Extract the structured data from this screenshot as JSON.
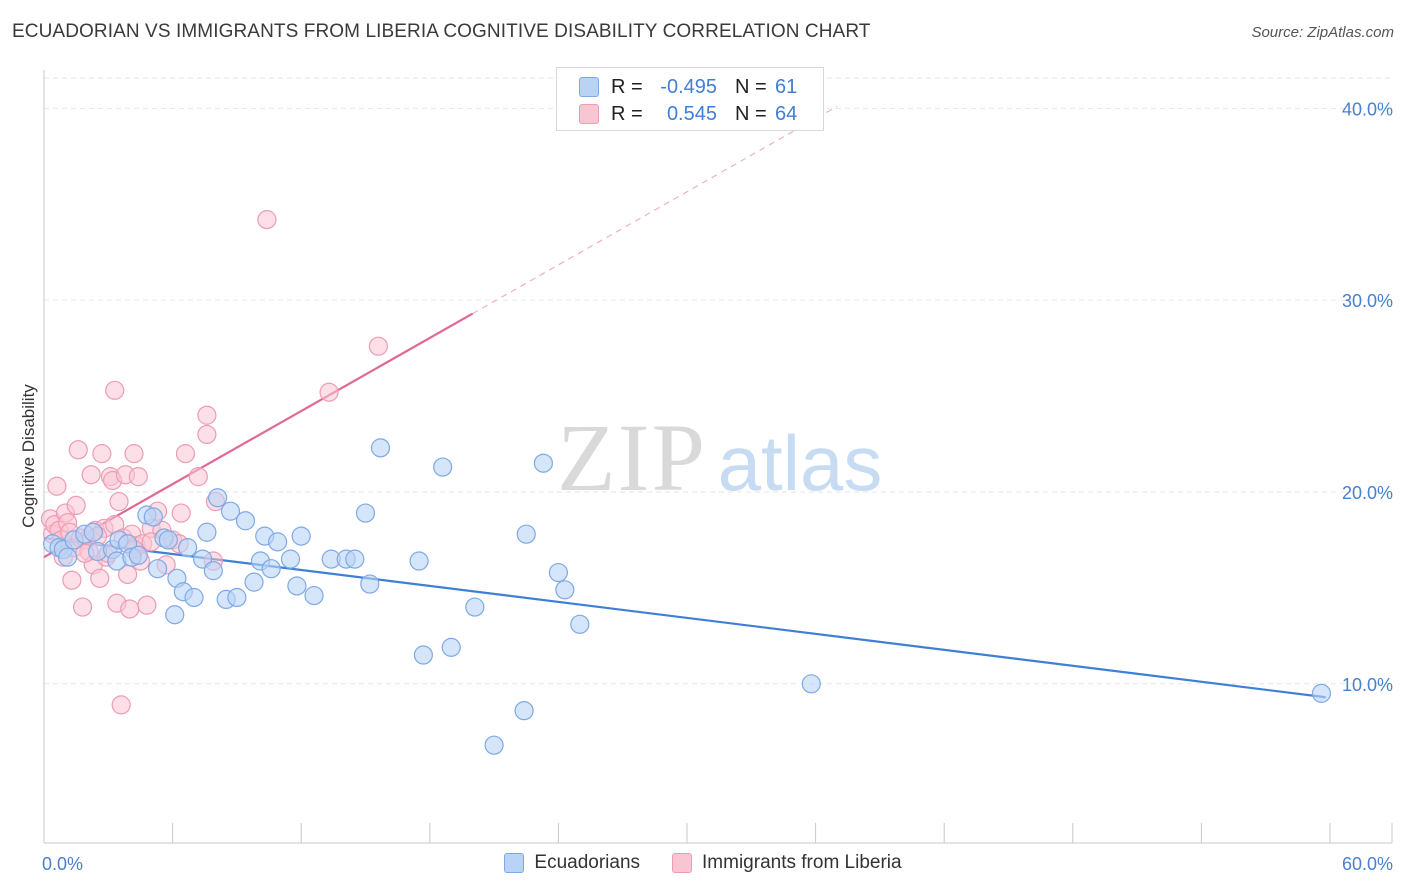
{
  "title": "ECUADORIAN VS IMMIGRANTS FROM LIBERIA COGNITIVE DISABILITY CORRELATION CHART",
  "source": "Source: ZipAtlas.com",
  "watermark": {
    "zip": "ZIP",
    "atlas": "atlas"
  },
  "legend": {
    "rows": [
      {
        "r_label": "R =",
        "r_value": "-0.495",
        "n_label": "N =",
        "n_value": "61"
      },
      {
        "r_label": "R =",
        "r_value": "0.545",
        "n_label": "N =",
        "n_value": "64"
      }
    ]
  },
  "bottom_legend": {
    "series1": "Ecuadorians",
    "series2": "Immigrants from Liberia"
  },
  "chart_data": {
    "type": "scatter",
    "ylabel": "Cognitive Disability",
    "xlim": [
      0,
      60
    ],
    "ylim": [
      1.7,
      42
    ],
    "x_tick_labels": [
      {
        "x": 0,
        "label": "0.0%"
      },
      {
        "x": 60,
        "label": "60.0%"
      }
    ],
    "y_tick_labels": [
      {
        "y": 10,
        "label": "10.0%"
      },
      {
        "y": 20,
        "label": "20.0%"
      },
      {
        "y": 30,
        "label": "30.0%"
      },
      {
        "y": 40,
        "label": "40.0%"
      }
    ],
    "colors": {
      "blue": "#3f7fd6",
      "blue_fill": "#b9d3f6",
      "pink": "#e06896",
      "pink_fill": "#f9c5d3",
      "tick_label": "#4a7fd0",
      "grid": "#e6e6e6"
    },
    "series": [
      {
        "name": "Ecuadorians",
        "color": "#3f7fd6",
        "points": [
          [
            0.4,
            17.3
          ],
          [
            0.7,
            17.1
          ],
          [
            0.9,
            17.0
          ],
          [
            1.1,
            16.6
          ],
          [
            1.4,
            17.5
          ],
          [
            1.9,
            17.8
          ],
          [
            2.3,
            17.9
          ],
          [
            2.5,
            16.9
          ],
          [
            3.2,
            17.0
          ],
          [
            3.5,
            17.5
          ],
          [
            3.4,
            16.4
          ],
          [
            3.9,
            17.3
          ],
          [
            4.1,
            16.6
          ],
          [
            4.4,
            16.7
          ],
          [
            4.8,
            18.8
          ],
          [
            5.1,
            18.7
          ],
          [
            5.3,
            16.0
          ],
          [
            5.6,
            17.6
          ],
          [
            5.8,
            17.5
          ],
          [
            6.1,
            13.6
          ],
          [
            6.2,
            15.5
          ],
          [
            6.5,
            14.8
          ],
          [
            6.7,
            17.1
          ],
          [
            7.0,
            14.5
          ],
          [
            7.4,
            16.5
          ],
          [
            7.6,
            17.9
          ],
          [
            7.9,
            15.9
          ],
          [
            8.1,
            19.7
          ],
          [
            8.5,
            14.4
          ],
          [
            8.7,
            19.0
          ],
          [
            9.0,
            14.5
          ],
          [
            9.4,
            18.5
          ],
          [
            9.8,
            15.3
          ],
          [
            10.1,
            16.4
          ],
          [
            10.3,
            17.7
          ],
          [
            10.6,
            16.0
          ],
          [
            10.9,
            17.4
          ],
          [
            11.5,
            16.5
          ],
          [
            11.8,
            15.1
          ],
          [
            12.0,
            17.7
          ],
          [
            12.6,
            14.6
          ],
          [
            13.4,
            16.5
          ],
          [
            14.1,
            16.5
          ],
          [
            14.5,
            16.5
          ],
          [
            15.0,
            18.9
          ],
          [
            15.2,
            15.2
          ],
          [
            15.7,
            22.3
          ],
          [
            17.5,
            16.4
          ],
          [
            17.7,
            11.5
          ],
          [
            18.6,
            21.3
          ],
          [
            19.0,
            11.9
          ],
          [
            20.1,
            14.0
          ],
          [
            21.0,
            6.8
          ],
          [
            22.4,
            8.6
          ],
          [
            22.5,
            17.8
          ],
          [
            23.3,
            21.5
          ],
          [
            24.0,
            15.8
          ],
          [
            24.3,
            14.9
          ],
          [
            25.0,
            13.1
          ],
          [
            35.8,
            10.0
          ],
          [
            59.6,
            9.5
          ]
        ],
        "trend": {
          "x0": 0,
          "y0": 17.6,
          "x1": 59.8,
          "y1": 9.3
        }
      },
      {
        "name": "Immigrants from Liberia",
        "color": "#e06896",
        "points": [
          [
            0.3,
            18.6
          ],
          [
            0.4,
            17.8
          ],
          [
            0.5,
            18.3
          ],
          [
            0.6,
            20.3
          ],
          [
            0.7,
            18.0
          ],
          [
            0.8,
            17.5
          ],
          [
            0.9,
            16.6
          ],
          [
            1.0,
            18.9
          ],
          [
            1.1,
            18.4
          ],
          [
            1.2,
            17.9
          ],
          [
            1.3,
            15.4
          ],
          [
            1.4,
            17.1
          ],
          [
            1.5,
            19.3
          ],
          [
            1.6,
            22.2
          ],
          [
            1.7,
            17.6
          ],
          [
            1.8,
            14.0
          ],
          [
            2.0,
            17.5
          ],
          [
            2.1,
            16.9
          ],
          [
            2.2,
            20.9
          ],
          [
            2.3,
            16.2
          ],
          [
            2.4,
            18.0
          ],
          [
            2.6,
            15.5
          ],
          [
            2.7,
            22.0
          ],
          [
            2.8,
            18.1
          ],
          [
            2.9,
            16.6
          ],
          [
            3.0,
            16.8
          ],
          [
            3.1,
            20.8
          ],
          [
            3.2,
            20.6
          ],
          [
            3.3,
            18.3
          ],
          [
            3.4,
            14.2
          ],
          [
            3.5,
            19.5
          ],
          [
            3.6,
            8.9
          ],
          [
            3.7,
            17.6
          ],
          [
            3.8,
            20.9
          ],
          [
            3.9,
            15.7
          ],
          [
            4.0,
            13.9
          ],
          [
            4.1,
            17.8
          ],
          [
            4.2,
            22.0
          ],
          [
            4.3,
            17.2
          ],
          [
            4.4,
            20.8
          ],
          [
            4.5,
            16.4
          ],
          [
            4.6,
            17.3
          ],
          [
            3.3,
            25.3
          ],
          [
            4.8,
            14.1
          ],
          [
            5.0,
            18.1
          ],
          [
            5.3,
            19.0
          ],
          [
            5.5,
            18.0
          ],
          [
            5.7,
            16.2
          ],
          [
            6.0,
            17.5
          ],
          [
            6.4,
            18.9
          ],
          [
            6.6,
            22.0
          ],
          [
            7.2,
            20.8
          ],
          [
            7.6,
            24.0
          ],
          [
            7.6,
            23.0
          ],
          [
            7.9,
            16.4
          ],
          [
            8.0,
            19.5
          ],
          [
            10.4,
            34.2
          ],
          [
            13.3,
            25.2
          ],
          [
            15.6,
            27.6
          ],
          [
            4.2,
            17.0
          ],
          [
            5.0,
            17.4
          ],
          [
            2.5,
            17.7
          ],
          [
            1.9,
            16.8
          ],
          [
            6.3,
            17.3
          ]
        ],
        "trend": {
          "x0": 0,
          "y0": 16.6,
          "x1": 20.0,
          "y1": 29.3
        },
        "trend_extension": {
          "x0": 20.0,
          "y0": 29.3,
          "x1": 37.0,
          "y1": 40.1
        }
      }
    ]
  }
}
